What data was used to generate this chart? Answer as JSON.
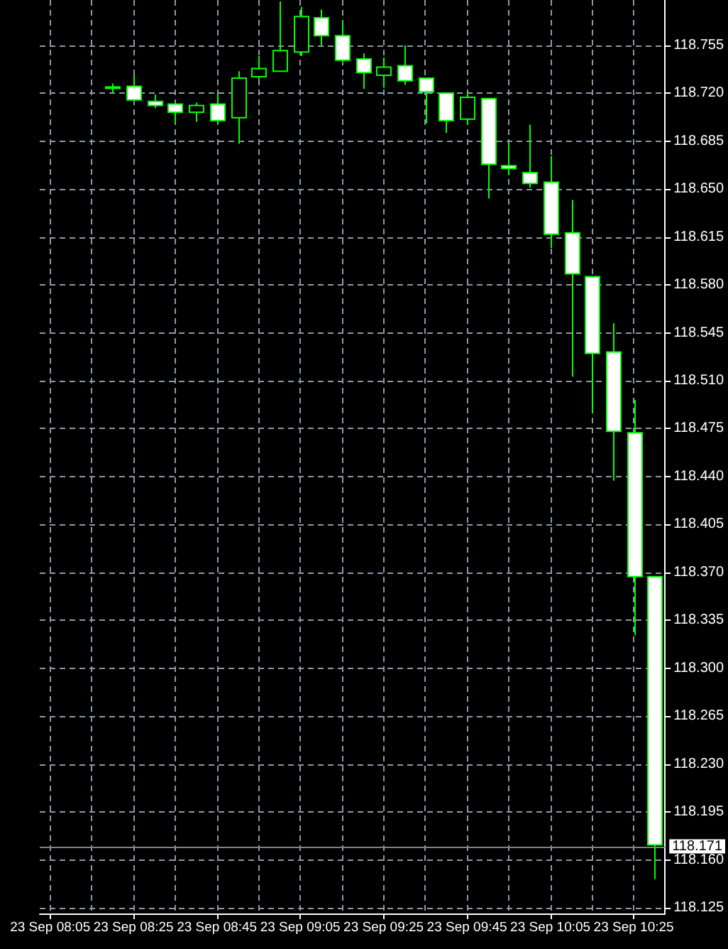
{
  "chart_data": {
    "type": "candlestick",
    "categories": [
      "23 Sep 08:05",
      null,
      null,
      null,
      "23 Sep 08:25",
      null,
      null,
      null,
      "23 Sep 08:45",
      null,
      null,
      null,
      "23 Sep 09:05",
      null,
      null,
      null,
      "23 Sep 09:25",
      null,
      null,
      null,
      "23 Sep 09:45",
      null,
      null,
      null,
      "23 Sep 10:05",
      null,
      null,
      null,
      "23 Sep 10:25",
      null
    ],
    "ohlc": [
      null,
      null,
      null,
      [
        118.724,
        118.727,
        118.72,
        118.724
      ],
      [
        118.725,
        118.733,
        118.715,
        118.715
      ],
      [
        118.714,
        118.719,
        118.709,
        118.711
      ],
      [
        118.712,
        118.713,
        118.698,
        118.706
      ],
      [
        118.706,
        118.713,
        118.699,
        118.711
      ],
      [
        118.712,
        118.72,
        118.697,
        118.7
      ],
      [
        118.702,
        118.736,
        118.683,
        118.731
      ],
      [
        118.732,
        118.747,
        118.73,
        118.738
      ],
      [
        118.736,
        118.787,
        118.736,
        118.751
      ],
      [
        118.75,
        118.783,
        118.747,
        118.776
      ],
      [
        118.775,
        118.781,
        118.755,
        118.762
      ],
      [
        118.762,
        118.772,
        118.742,
        118.744
      ],
      [
        118.745,
        118.749,
        118.723,
        118.735
      ],
      [
        118.733,
        118.746,
        118.724,
        118.739
      ],
      [
        118.74,
        118.755,
        118.726,
        118.729
      ],
      [
        118.731,
        118.731,
        118.698,
        118.721
      ],
      [
        118.72,
        118.72,
        118.691,
        118.7
      ],
      [
        118.701,
        118.721,
        118.697,
        118.717
      ],
      [
        118.716,
        118.716,
        118.643,
        118.668
      ],
      [
        118.667,
        118.683,
        118.66,
        118.665
      ],
      [
        118.662,
        118.697,
        118.651,
        118.654
      ],
      [
        118.655,
        118.674,
        118.607,
        118.617
      ],
      [
        118.618,
        118.642,
        118.513,
        118.588
      ],
      [
        118.586,
        118.586,
        118.486,
        118.53
      ],
      [
        118.531,
        118.552,
        118.437,
        118.473
      ],
      [
        118.472,
        118.496,
        118.324,
        118.367
      ],
      [
        118.367,
        118.367,
        118.146,
        118.171
      ]
    ],
    "color": "#00ff00",
    "colors": [
      null,
      null,
      null,
      "#000000",
      "#ffffff",
      "#ffffff",
      "#ffffff",
      "#000000",
      "#ffffff",
      "#000000",
      "#000000",
      "#000000",
      "#000000",
      "#ffffff",
      "#ffffff",
      "#ffffff",
      "#000000",
      "#ffffff",
      "#ffffff",
      "#ffffff",
      "#000000",
      "#ffffff",
      "#ffffff",
      "#ffffff",
      "#ffffff",
      "#ffffff",
      "#ffffff",
      "#ffffff",
      "#ffffff",
      "#ffffff"
    ],
    "ylim": [
      118.121,
      118.788
    ],
    "yticks": [
      118.125,
      {
        "value": 118.16,
        "label": "118.160"
      },
      118.195,
      {
        "value": 118.23,
        "label": "118.230"
      },
      118.265,
      {
        "value": 118.3,
        "label": "118.300"
      },
      118.335,
      {
        "value": 118.37,
        "label": "118.370"
      },
      118.405,
      {
        "value": 118.44,
        "label": "118.440"
      },
      118.475,
      {
        "value": 118.51,
        "label": "118.510"
      },
      118.545,
      {
        "value": 118.58,
        "label": "118.580"
      },
      118.615,
      {
        "value": 118.65,
        "label": "118.650"
      },
      118.685,
      {
        "value": 118.72,
        "label": "118.720"
      },
      118.755
    ],
    "grid": true,
    "ref_lines": [
      {
        "axis": "y",
        "value": 118.171,
        "label": "118.171",
        "color": "#808080"
      }
    ]
  }
}
